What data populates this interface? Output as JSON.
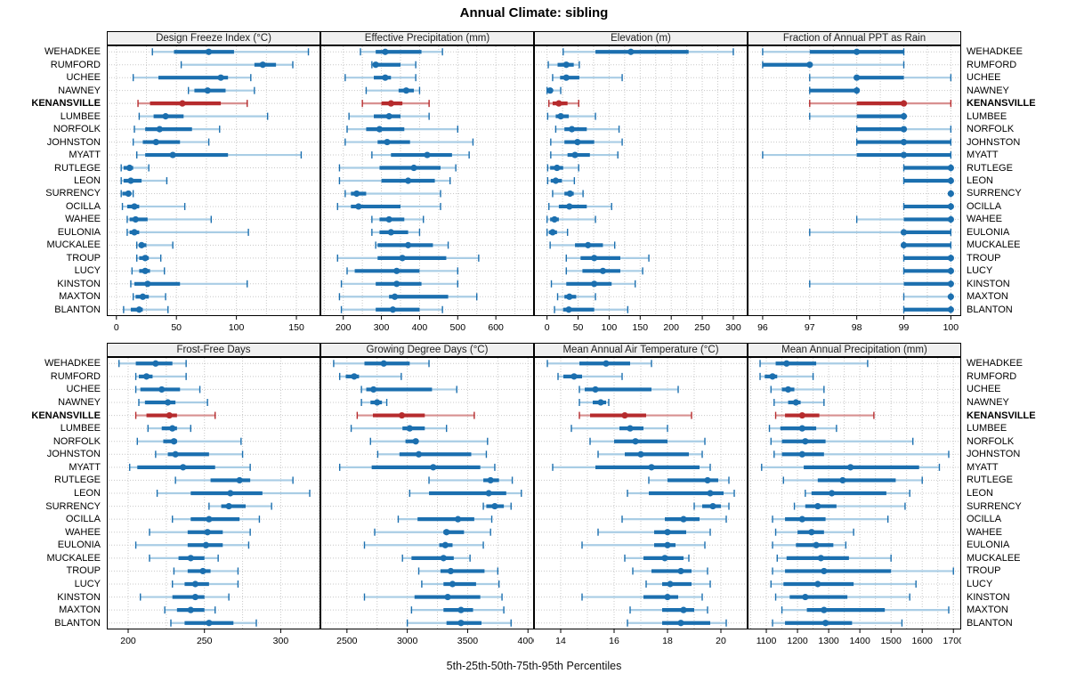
{
  "title": "Annual Climate: sibling",
  "footer": "5th-25th-50th-75th-95th Percentiles",
  "percentiles": [
    "5th",
    "25th",
    "50th",
    "75th",
    "95th"
  ],
  "highlight_site": "KENANSVILLE",
  "colors": {
    "blue": "#1B6FAF",
    "blue_light": "#A9CDE5",
    "red": "#B62B2D",
    "red_light": "#D89090",
    "grid": "#C8C8C8",
    "header_bg": "#F0F0F0",
    "panel_border": "#000000",
    "background": "#FFFFFF"
  },
  "sites": [
    "WEHADKEE",
    "RUMFORD",
    "UCHEE",
    "NAWNEY",
    "KENANSVILLE",
    "LUMBEE",
    "NORFOLK",
    "JOHNSTON",
    "MYATT",
    "RUTLEGE",
    "LEON",
    "SURRENCY",
    "OCILLA",
    "WAHEE",
    "EULONIA",
    "MUCKALEE",
    "TROUP",
    "LUCY",
    "KINSTON",
    "MAXTON",
    "BLANTON"
  ],
  "chart_data": [
    {
      "type": "dot-interval-percentiles",
      "panel": "Design Freeze Index (°C)",
      "grid_row": 0,
      "xlim": [
        -8,
        170
      ],
      "ticks": [
        0,
        50,
        100,
        150
      ],
      "minor_step": 25,
      "values": [
        [
          30,
          48,
          77,
          98,
          160
        ],
        [
          54,
          115,
          122,
          133,
          147
        ],
        [
          14,
          35,
          87,
          93,
          112
        ],
        [
          60,
          65,
          76,
          91,
          115
        ],
        [
          18,
          28,
          55,
          87,
          109
        ],
        [
          19,
          31,
          41,
          56,
          126
        ],
        [
          15,
          24,
          36,
          63,
          86
        ],
        [
          14,
          22,
          33,
          53,
          77
        ],
        [
          17,
          24,
          47,
          93,
          154
        ],
        [
          4,
          6,
          11,
          14,
          27
        ],
        [
          4,
          6,
          12,
          21,
          42
        ],
        [
          4,
          5,
          10,
          12,
          14
        ],
        [
          5,
          9,
          15,
          19,
          57
        ],
        [
          9,
          11,
          16,
          26,
          79
        ],
        [
          9,
          11,
          15,
          19,
          110
        ],
        [
          17,
          19,
          21,
          25,
          47
        ],
        [
          17,
          19,
          24,
          27,
          37
        ],
        [
          13,
          19,
          24,
          28,
          40
        ],
        [
          12,
          15,
          26,
          53,
          109
        ],
        [
          14,
          16,
          22,
          27,
          41
        ],
        [
          6,
          12,
          19,
          22,
          43
        ]
      ]
    },
    {
      "type": "dot-interval-percentiles",
      "panel": "Effective Precipitation (mm)",
      "grid_row": 0,
      "xlim": [
        140,
        700
      ],
      "ticks": [
        200,
        300,
        400,
        500,
        600
      ],
      "minor_step": 50,
      "values": [
        [
          245,
          285,
          310,
          405,
          460
        ],
        [
          275,
          280,
          285,
          350,
          390
        ],
        [
          205,
          280,
          310,
          325,
          390
        ],
        [
          260,
          345,
          365,
          385,
          400
        ],
        [
          250,
          300,
          325,
          355,
          425
        ],
        [
          215,
          280,
          320,
          350,
          425
        ],
        [
          210,
          260,
          295,
          360,
          500
        ],
        [
          205,
          290,
          315,
          375,
          540
        ],
        [
          275,
          325,
          420,
          485,
          530
        ],
        [
          190,
          295,
          385,
          455,
          495
        ],
        [
          190,
          300,
          370,
          440,
          480
        ],
        [
          205,
          220,
          235,
          260,
          455
        ],
        [
          185,
          220,
          240,
          350,
          455
        ],
        [
          275,
          295,
          320,
          360,
          410
        ],
        [
          275,
          295,
          325,
          370,
          400
        ],
        [
          285,
          290,
          370,
          435,
          475
        ],
        [
          185,
          290,
          355,
          470,
          555
        ],
        [
          210,
          230,
          340,
          400,
          500
        ],
        [
          195,
          285,
          340,
          405,
          500
        ],
        [
          190,
          320,
          335,
          475,
          550
        ],
        [
          195,
          285,
          330,
          400,
          460
        ]
      ]
    },
    {
      "type": "dot-interval-percentiles",
      "panel": "Elevation (m)",
      "grid_row": 0,
      "xlim": [
        -21,
        323
      ],
      "ticks": [
        0,
        50,
        100,
        150,
        200,
        250,
        300
      ],
      "minor_step": 25,
      "values": [
        [
          26,
          78,
          135,
          228,
          300
        ],
        [
          2,
          17,
          31,
          43,
          52
        ],
        [
          9,
          21,
          31,
          52,
          121
        ],
        [
          0,
          2,
          5,
          8,
          22
        ],
        [
          3,
          9,
          19,
          33,
          51
        ],
        [
          1,
          14,
          22,
          35,
          78
        ],
        [
          14,
          28,
          40,
          64,
          116
        ],
        [
          6,
          28,
          49,
          76,
          121
        ],
        [
          6,
          33,
          45,
          69,
          114
        ],
        [
          1,
          5,
          16,
          26,
          51
        ],
        [
          1,
          6,
          14,
          24,
          44
        ],
        [
          9,
          28,
          37,
          43,
          58
        ],
        [
          3,
          19,
          36,
          64,
          104
        ],
        [
          0,
          5,
          12,
          19,
          78
        ],
        [
          0,
          3,
          9,
          16,
          33
        ],
        [
          5,
          45,
          66,
          90,
          109
        ],
        [
          31,
          54,
          76,
          118,
          164
        ],
        [
          31,
          57,
          90,
          118,
          154
        ],
        [
          7,
          31,
          76,
          104,
          142
        ],
        [
          17,
          28,
          36,
          47,
          78
        ],
        [
          12,
          26,
          35,
          76,
          130
        ]
      ]
    },
    {
      "type": "dot-interval-percentiles",
      "panel": "Fraction of Annual PPT as Rain",
      "grid_row": 0,
      "xlim": [
        95.68,
        100.22
      ],
      "ticks": [
        96,
        97,
        98,
        99,
        100
      ],
      "minor_step": 0.5,
      "values": [
        [
          96,
          97,
          98,
          99,
          99
        ],
        [
          96,
          96,
          97,
          97,
          99
        ],
        [
          97,
          98,
          98,
          99,
          100
        ],
        [
          97,
          97,
          98,
          98,
          98
        ],
        [
          97,
          98,
          99,
          99,
          100
        ],
        [
          97,
          98,
          99,
          99,
          99
        ],
        [
          98,
          98,
          99,
          99,
          100
        ],
        [
          98,
          98,
          99,
          100,
          100
        ],
        [
          96,
          98,
          99,
          100,
          100
        ],
        [
          99,
          99,
          100,
          100,
          100
        ],
        [
          99,
          99,
          100,
          100,
          100
        ],
        [
          100,
          100,
          100,
          100,
          100
        ],
        [
          99,
          99,
          100,
          100,
          100
        ],
        [
          98,
          99,
          100,
          100,
          100
        ],
        [
          97,
          99,
          99,
          100,
          100
        ],
        [
          99,
          99,
          99,
          100,
          100
        ],
        [
          99,
          99,
          100,
          100,
          100
        ],
        [
          99,
          99,
          100,
          100,
          100
        ],
        [
          97,
          99,
          100,
          100,
          100
        ],
        [
          99,
          100,
          100,
          100,
          100
        ],
        [
          99,
          99,
          100,
          100,
          100
        ]
      ]
    },
    {
      "type": "dot-interval-percentiles",
      "panel": "Frost-Free Days",
      "grid_row": 1,
      "xlim": [
        186,
        326
      ],
      "ticks": [
        200,
        250,
        300
      ],
      "minor_step": 25,
      "values": [
        [
          194,
          205,
          218,
          229,
          238
        ],
        [
          205,
          207,
          212,
          216,
          238
        ],
        [
          205,
          208,
          222,
          234,
          247
        ],
        [
          207,
          211,
          226,
          231,
          252
        ],
        [
          205,
          212,
          227,
          232,
          257
        ],
        [
          213,
          222,
          229,
          232,
          241
        ],
        [
          206,
          223,
          230,
          232,
          274
        ],
        [
          218,
          226,
          231,
          253,
          275
        ],
        [
          201,
          206,
          236,
          257,
          280
        ],
        [
          231,
          254,
          273,
          280,
          308
        ],
        [
          219,
          241,
          267,
          288,
          319
        ],
        [
          253,
          261,
          266,
          277,
          294
        ],
        [
          229,
          241,
          253,
          273,
          286
        ],
        [
          214,
          239,
          252,
          262,
          280
        ],
        [
          205,
          239,
          251,
          262,
          279
        ],
        [
          214,
          233,
          241,
          250,
          259
        ],
        [
          230,
          239,
          249,
          254,
          272
        ],
        [
          229,
          237,
          244,
          253,
          272
        ],
        [
          208,
          229,
          244,
          250,
          266
        ],
        [
          224,
          232,
          241,
          250,
          257
        ],
        [
          228,
          237,
          253,
          269,
          284
        ]
      ]
    },
    {
      "type": "dot-interval-percentiles",
      "panel": "Growing Degree Days (°C)",
      "grid_row": 1,
      "xlim": [
        2280,
        4050
      ],
      "ticks": [
        2500,
        3000,
        3500,
        4000
      ],
      "minor_step": 250,
      "values": [
        [
          2390,
          2645,
          2805,
          3020,
          3180
        ],
        [
          2440,
          2490,
          2560,
          2600,
          2950
        ],
        [
          2620,
          2660,
          2720,
          3205,
          3410
        ],
        [
          2620,
          2695,
          2750,
          2790,
          2830
        ],
        [
          2585,
          2715,
          2955,
          3145,
          3555
        ],
        [
          2535,
          2960,
          3020,
          3145,
          3325
        ],
        [
          2695,
          2985,
          3070,
          3090,
          3665
        ],
        [
          2755,
          2935,
          3095,
          3530,
          3655
        ],
        [
          2440,
          2705,
          3215,
          3605,
          3725
        ],
        [
          3180,
          3630,
          3690,
          3760,
          3870
        ],
        [
          3020,
          3180,
          3675,
          3820,
          3945
        ],
        [
          3630,
          3655,
          3725,
          3800,
          3860
        ],
        [
          2925,
          3085,
          3420,
          3555,
          3700
        ],
        [
          2730,
          3300,
          3325,
          3470,
          3690
        ],
        [
          2645,
          3265,
          3315,
          3375,
          3630
        ],
        [
          2960,
          3035,
          3300,
          3385,
          3520
        ],
        [
          3095,
          3275,
          3360,
          3640,
          3750
        ],
        [
          3120,
          3300,
          3375,
          3570,
          3760
        ],
        [
          2645,
          3060,
          3335,
          3605,
          3785
        ],
        [
          3035,
          3300,
          3445,
          3545,
          3800
        ],
        [
          3000,
          3325,
          3445,
          3615,
          3860
        ]
      ]
    },
    {
      "type": "dot-interval-percentiles",
      "panel": "Mean Annual Air Temperature (°C)",
      "grid_row": 1,
      "xlim": [
        13,
        21
      ],
      "ticks": [
        14,
        16,
        18,
        20
      ],
      "minor_step": 1,
      "values": [
        [
          13.5,
          14.7,
          15.7,
          16.6,
          17.4
        ],
        [
          13.9,
          14.1,
          14.5,
          14.8,
          16.3
        ],
        [
          14.7,
          14.9,
          15.3,
          17.4,
          18.4
        ],
        [
          14.7,
          15.2,
          15.5,
          15.7,
          15.8
        ],
        [
          14.7,
          15.1,
          16.4,
          17.2,
          18.9
        ],
        [
          14.4,
          16.2,
          16.6,
          17.1,
          18.0
        ],
        [
          15.1,
          16.0,
          16.8,
          18.0,
          19.4
        ],
        [
          15.4,
          16.4,
          17.0,
          18.8,
          19.3
        ],
        [
          13.7,
          15.3,
          17.4,
          19.2,
          19.6
        ],
        [
          17.3,
          18.0,
          19.5,
          19.9,
          20.3
        ],
        [
          16.5,
          17.3,
          19.6,
          20.1,
          20.5
        ],
        [
          19.0,
          19.3,
          19.7,
          20.0,
          20.3
        ],
        [
          16.3,
          17.9,
          18.6,
          19.2,
          20.2
        ],
        [
          15.4,
          17.5,
          18.0,
          18.7,
          19.6
        ],
        [
          14.8,
          17.5,
          18.0,
          18.3,
          19.4
        ],
        [
          16.4,
          17.1,
          17.9,
          18.6,
          18.8
        ],
        [
          16.7,
          17.4,
          18.5,
          18.9,
          19.5
        ],
        [
          17.2,
          17.8,
          18.1,
          18.9,
          19.6
        ],
        [
          14.8,
          17.1,
          18.0,
          18.4,
          19.3
        ],
        [
          16.6,
          17.8,
          18.6,
          19.0,
          19.5
        ],
        [
          16.5,
          17.8,
          18.5,
          19.6,
          20.2
        ]
      ]
    },
    {
      "type": "dot-interval-percentiles",
      "panel": "Mean Annual Precipitation (mm)",
      "grid_row": 1,
      "xlim": [
        1040,
        1725
      ],
      "ticks": [
        1100,
        1200,
        1300,
        1400,
        1500,
        1600,
        1700
      ],
      "minor_step": 50,
      "values": [
        [
          1080,
          1130,
          1165,
          1260,
          1425
        ],
        [
          1080,
          1095,
          1120,
          1135,
          1250
        ],
        [
          1115,
          1150,
          1170,
          1190,
          1285
        ],
        [
          1125,
          1170,
          1195,
          1210,
          1285
        ],
        [
          1130,
          1160,
          1215,
          1270,
          1445
        ],
        [
          1110,
          1145,
          1215,
          1260,
          1325
        ],
        [
          1115,
          1150,
          1225,
          1290,
          1570
        ],
        [
          1125,
          1150,
          1215,
          1285,
          1685
        ],
        [
          1085,
          1220,
          1370,
          1590,
          1655
        ],
        [
          1155,
          1265,
          1345,
          1515,
          1600
        ],
        [
          1225,
          1245,
          1310,
          1485,
          1560
        ],
        [
          1190,
          1225,
          1265,
          1325,
          1545
        ],
        [
          1120,
          1160,
          1215,
          1290,
          1490
        ],
        [
          1130,
          1200,
          1245,
          1285,
          1380
        ],
        [
          1120,
          1195,
          1260,
          1315,
          1355
        ],
        [
          1135,
          1165,
          1275,
          1365,
          1500
        ],
        [
          1120,
          1160,
          1285,
          1500,
          1700
        ],
        [
          1115,
          1155,
          1265,
          1380,
          1580
        ],
        [
          1130,
          1175,
          1225,
          1360,
          1560
        ],
        [
          1150,
          1230,
          1285,
          1480,
          1685
        ],
        [
          1120,
          1160,
          1290,
          1375,
          1535
        ]
      ]
    }
  ]
}
